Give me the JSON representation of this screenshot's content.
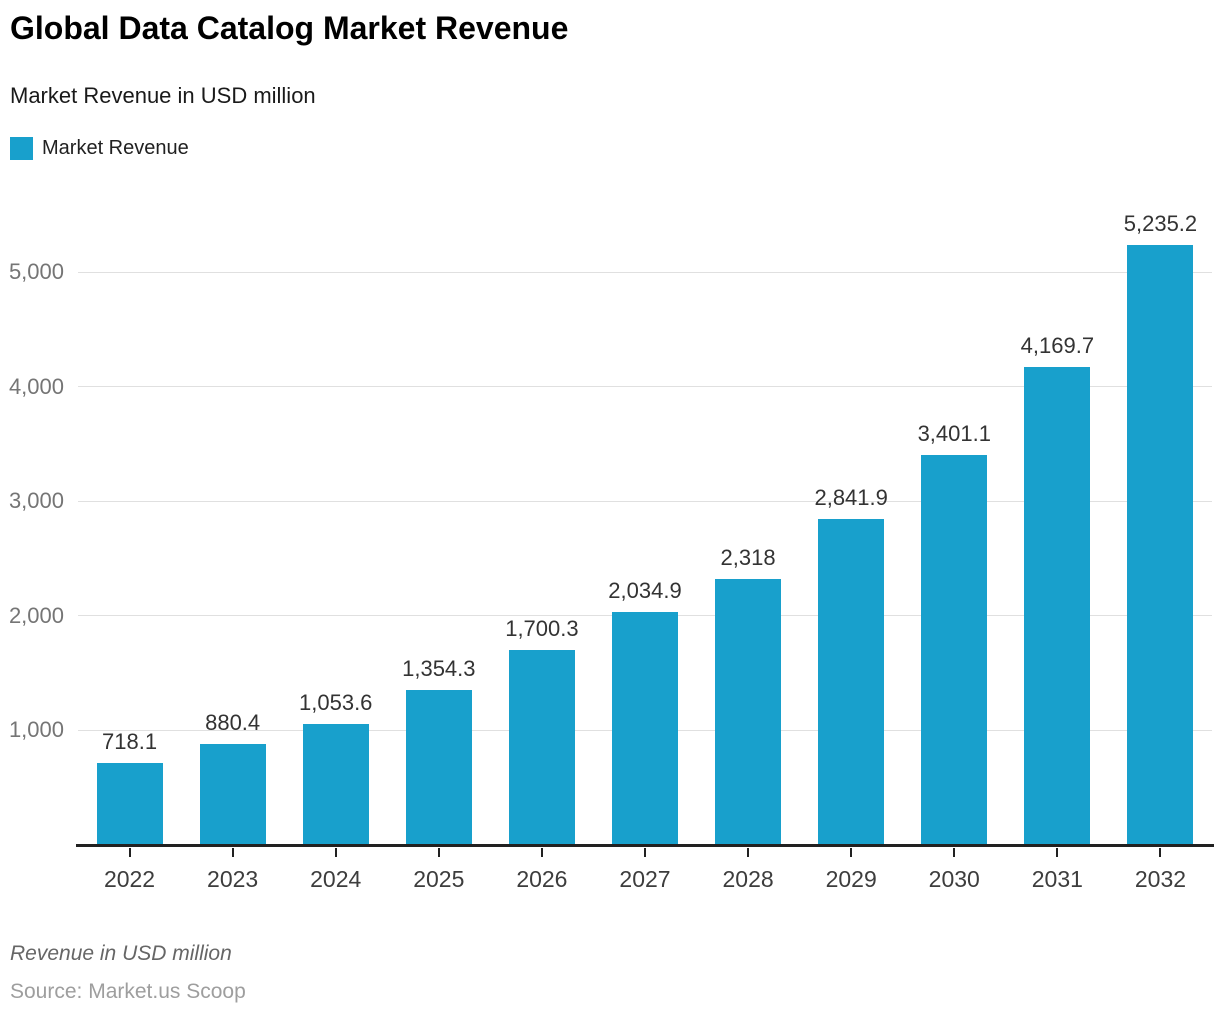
{
  "header": {
    "title": "Global Data Catalog Market Revenue",
    "subtitle": "Market Revenue in USD million"
  },
  "legend": {
    "label": "Market Revenue",
    "color": "#18a0cc"
  },
  "footer": {
    "note": "Revenue in USD million",
    "source": "Source: Market.us Scoop"
  },
  "chart_data": {
    "type": "bar",
    "title": "Global Data Catalog Market Revenue",
    "subtitle": "Market Revenue in USD million",
    "series_name": "Market Revenue",
    "categories": [
      "2022",
      "2023",
      "2024",
      "2025",
      "2026",
      "2027",
      "2028",
      "2029",
      "2030",
      "2031",
      "2032"
    ],
    "values": [
      718.1,
      880.4,
      1053.6,
      1354.3,
      1700.3,
      2034.9,
      2318,
      2841.9,
      3401.1,
      4169.7,
      5235.2
    ],
    "value_labels": [
      "718.1",
      "880.4",
      "1,053.6",
      "1,354.3",
      "1,700.3",
      "2,034.9",
      "2,318",
      "2,841.9",
      "3,401.1",
      "4,169.7",
      "5,235.2"
    ],
    "xlabel": "",
    "ylabel": "",
    "ylim": [
      0,
      5500
    ],
    "yticks": [
      1000,
      2000,
      3000,
      4000,
      5000
    ],
    "ytick_labels": [
      "1,000",
      "2,000",
      "3,000",
      "4,000",
      "5,000"
    ],
    "grid": true,
    "bar_color": "#18a0cc",
    "gridline_color": "#e0e0e0",
    "axis_color": "#212121",
    "legend_position": "top-left"
  }
}
